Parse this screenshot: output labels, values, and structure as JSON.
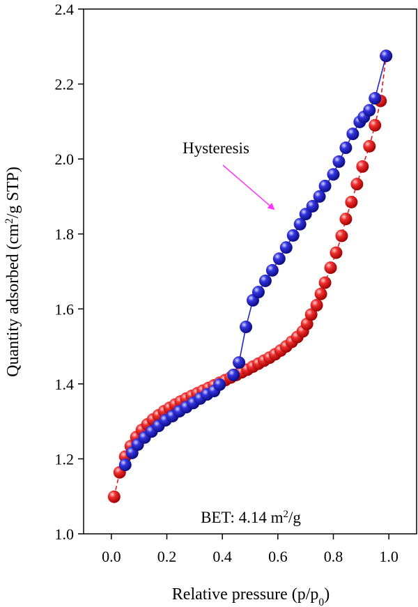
{
  "chart_data": {
    "type": "scatter",
    "x_label": [
      "Relative pressure (p/p",
      "0",
      ")"
    ],
    "y_label": [
      "Quantity adsorbed (cm",
      "2",
      "/g STP)"
    ],
    "annotations": {
      "hysteresis": "Hysteresis",
      "bet": [
        "BET: 4.14 m",
        "2",
        "/g"
      ]
    },
    "xlim": [
      -0.1,
      1.1
    ],
    "ylim": [
      1.0,
      2.4
    ],
    "xticks": [
      {
        "value": 0,
        "label": "0.0"
      },
      {
        "value": 0.2,
        "label": "0.2"
      },
      {
        "value": 0.4,
        "label": "0.4"
      },
      {
        "value": 0.6,
        "label": "0.6"
      },
      {
        "value": 0.8,
        "label": "0.8"
      },
      {
        "value": 1,
        "label": "1.0"
      }
    ],
    "yticks": [
      {
        "value": 1,
        "label": "1.0"
      },
      {
        "value": 1.2,
        "label": "1.2"
      },
      {
        "value": 1.4,
        "label": "1.4"
      },
      {
        "value": 1.6,
        "label": "1.6"
      },
      {
        "value": 1.8,
        "label": "1.8"
      },
      {
        "value": 2,
        "label": "2.0"
      },
      {
        "value": 2.2,
        "label": "2.2"
      },
      {
        "value": 2.4,
        "label": "2.4"
      }
    ],
    "series": [
      {
        "color": "#e8141c",
        "line": "dashed",
        "x": [
          0.01,
          0.03,
          0.05,
          0.07,
          0.09,
          0.11,
          0.13,
          0.15,
          0.17,
          0.19,
          0.21,
          0.23,
          0.25,
          0.27,
          0.29,
          0.31,
          0.33,
          0.35,
          0.37,
          0.39,
          0.41,
          0.43,
          0.45,
          0.47,
          0.49,
          0.51,
          0.53,
          0.55,
          0.57,
          0.59,
          0.61,
          0.63,
          0.65,
          0.67,
          0.69,
          0.705,
          0.72,
          0.74,
          0.755,
          0.77,
          0.79,
          0.81,
          0.83,
          0.845,
          0.865,
          0.885,
          0.905,
          0.93,
          0.95,
          0.97,
          0.99
        ],
        "values": [
          1.099,
          1.164,
          1.206,
          1.234,
          1.258,
          1.277,
          1.292,
          1.305,
          1.316,
          1.327,
          1.336,
          1.345,
          1.353,
          1.361,
          1.368,
          1.375,
          1.382,
          1.389,
          1.396,
          1.403,
          1.41,
          1.417,
          1.424,
          1.431,
          1.438,
          1.446,
          1.454,
          1.462,
          1.47,
          1.479,
          1.489,
          1.5,
          1.512,
          1.525,
          1.54,
          1.56,
          1.585,
          1.61,
          1.64,
          1.67,
          1.71,
          1.75,
          1.795,
          1.84,
          1.885,
          1.933,
          1.98,
          2.034,
          2.09,
          2.155,
          2.275
        ]
      },
      {
        "color": "#2424c8",
        "line": "solid",
        "x": [
          0.05,
          0.075,
          0.095,
          0.12,
          0.145,
          0.17,
          0.195,
          0.22,
          0.245,
          0.27,
          0.295,
          0.32,
          0.345,
          0.37,
          0.39,
          0.44,
          0.46,
          0.485,
          0.51,
          0.53,
          0.555,
          0.58,
          0.605,
          0.63,
          0.655,
          0.68,
          0.7,
          0.725,
          0.75,
          0.77,
          0.8,
          0.82,
          0.845,
          0.87,
          0.895,
          0.91,
          0.93,
          0.95,
          0.99
        ],
        "values": [
          1.184,
          1.216,
          1.238,
          1.257,
          1.273,
          1.288,
          1.303,
          1.314,
          1.327,
          1.338,
          1.349,
          1.361,
          1.372,
          1.381,
          1.398,
          1.424,
          1.457,
          1.552,
          1.623,
          1.645,
          1.675,
          1.703,
          1.734,
          1.764,
          1.796,
          1.826,
          1.853,
          1.874,
          1.9,
          1.928,
          1.959,
          1.993,
          2.03,
          2.067,
          2.099,
          2.112,
          2.13,
          2.162,
          2.275
        ]
      }
    ]
  }
}
